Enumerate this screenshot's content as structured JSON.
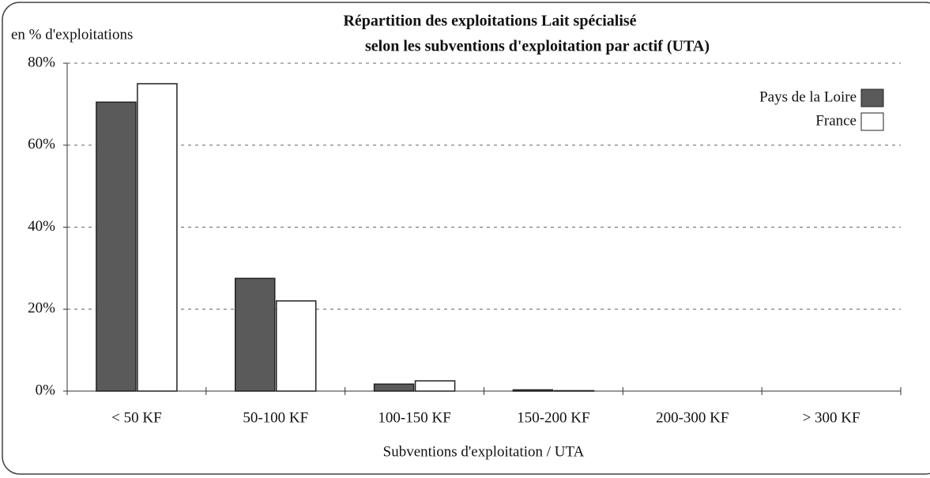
{
  "chart_data": {
    "type": "bar",
    "title": [
      "Répartition des exploitations Lait spécialisé",
      "selon les subventions d'exploitation par actif (UTA)"
    ],
    "y_label": "en % d'exploitations",
    "x_label": "Subventions d'exploitation / UTA",
    "categories": [
      "< 50 KF",
      "50-100 KF",
      "100-150 KF",
      "150-200 KF",
      "200-300 KF",
      "> 300 KF"
    ],
    "series": [
      {
        "name": "Pays de la Loire",
        "color": "#5a5a5a",
        "values": [
          70.5,
          27.5,
          1.7,
          0.3,
          0,
          0
        ]
      },
      {
        "name": "France",
        "color": "#ffffff",
        "values": [
          75,
          22,
          2.5,
          0.1,
          0,
          0
        ]
      }
    ],
    "ylim": [
      0,
      80
    ],
    "yticks": [
      {
        "value": 0,
        "label": "0%"
      },
      {
        "value": 20,
        "label": "20%"
      },
      {
        "value": 40,
        "label": "40%"
      },
      {
        "value": 60,
        "label": "60%"
      },
      {
        "value": 80,
        "label": "80%"
      }
    ],
    "grid": true,
    "legend": "top-right"
  }
}
